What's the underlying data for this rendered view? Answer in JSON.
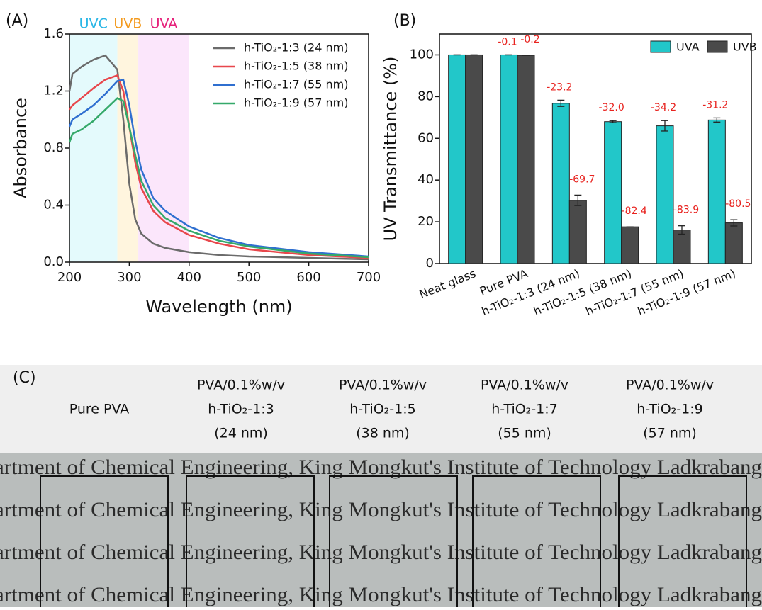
{
  "chart_data": [
    {
      "type": "line",
      "panel_label": "(A)",
      "x_label": "Wavelength (nm)",
      "y_label": "Absorbance",
      "xlim": [
        200,
        700
      ],
      "xticks": [
        200,
        300,
        400,
        500,
        600,
        700
      ],
      "ylim": [
        0,
        1.6
      ],
      "yticks": [
        {
          "value": 0,
          "label": "0.0"
        },
        0.4,
        0.8,
        1.2,
        1.6
      ],
      "regions": [
        {
          "label": "UVC",
          "start": 200,
          "end": 280,
          "color": "#e4fafc",
          "label_color": "#29b6e6"
        },
        {
          "label": "UVB",
          "start": 280,
          "end": 315,
          "color": "#fff5de",
          "label_color": "#f39a1e"
        },
        {
          "label": "UVA",
          "start": 315,
          "end": 400,
          "color": "#fbe6fb",
          "label_color": "#e6207a"
        }
      ],
      "x": [
        200,
        205,
        220,
        240,
        260,
        280,
        290,
        300,
        310,
        320,
        340,
        360,
        400,
        450,
        500,
        600,
        700
      ],
      "series": [
        {
          "name": "h-TiO₂-1:3 (24 nm)",
          "color": "#6b6b6b",
          "values": [
            1.2,
            1.32,
            1.37,
            1.42,
            1.45,
            1.35,
            1.0,
            0.55,
            0.3,
            0.2,
            0.13,
            0.1,
            0.07,
            0.05,
            0.04,
            0.03,
            0.02
          ]
        },
        {
          "name": "h-TiO₂-1:5 (38 nm)",
          "color": "#e8474c",
          "values": [
            1.07,
            1.1,
            1.15,
            1.22,
            1.28,
            1.31,
            1.2,
            0.95,
            0.7,
            0.52,
            0.36,
            0.28,
            0.19,
            0.13,
            0.09,
            0.05,
            0.03
          ]
        },
        {
          "name": "h-TiO₂-1:7 (55 nm)",
          "color": "#2f6fd0",
          "values": [
            0.95,
            1.0,
            1.04,
            1.1,
            1.18,
            1.27,
            1.28,
            1.1,
            0.85,
            0.65,
            0.45,
            0.36,
            0.25,
            0.17,
            0.12,
            0.07,
            0.04
          ]
        },
        {
          "name": "h-TiO₂-1:9 (57 nm)",
          "color": "#35a96a",
          "values": [
            0.84,
            0.9,
            0.93,
            0.99,
            1.07,
            1.15,
            1.13,
            0.95,
            0.75,
            0.57,
            0.4,
            0.31,
            0.22,
            0.15,
            0.11,
            0.06,
            0.035
          ]
        }
      ]
    },
    {
      "type": "bar",
      "panel_label": "(B)",
      "y_label": "UV Transmittance (%)",
      "ylim": [
        0,
        110
      ],
      "yticks": [
        0,
        20,
        40,
        60,
        80,
        100
      ],
      "legend": "top-right",
      "categories": [
        "Neat glass",
        "Pure PVA",
        "h-TiO₂-1:3 (24 nm)",
        "h-TiO₂-1:5 (38 nm)",
        "h-TiO₂-1:7 (55 nm)",
        "h-TiO₂-1:9 (57 nm)"
      ],
      "series": [
        {
          "name": "UVA",
          "color": "#22c7c9",
          "values": [
            100,
            100,
            76.8,
            68,
            66,
            68.8
          ],
          "errors": [
            0,
            0,
            1.5,
            0.5,
            2.5,
            1
          ],
          "changes": [
            null,
            -0.1,
            -23.2,
            -32.0,
            -34.2,
            -31.2
          ],
          "change_labels": [
            null,
            "-0.1",
            "-23.2",
            "-32.0",
            "-34.2",
            "-31.2"
          ]
        },
        {
          "name": "UVB",
          "color": "#4a4a4a",
          "values": [
            100,
            99.8,
            30.3,
            17.6,
            16.1,
            19.5
          ],
          "errors": [
            0,
            0,
            2.5,
            0,
            2,
            1.5
          ],
          "changes": [
            null,
            -0.2,
            -69.7,
            -82.4,
            -83.9,
            -80.5
          ],
          "change_labels": [
            null,
            "-0.2",
            "-69.7",
            "-82.4",
            "-83.9",
            "-80.5"
          ]
        }
      ]
    }
  ],
  "panel_c": {
    "label": "(C)",
    "columns": [
      [
        "Pure PVA"
      ],
      [
        "PVA/0.1%w/v",
        "h-TiO₂-1:3",
        "(24 nm)"
      ],
      [
        "PVA/0.1%w/v",
        "h-TiO₂-1:5",
        "(38 nm)"
      ],
      [
        "PVA/0.1%w/v",
        "h-TiO₂-1:7",
        "(55 nm)"
      ],
      [
        "PVA/0.1%w/v",
        "h-TiO₂-1:9",
        "(57 nm)"
      ]
    ],
    "photo_lines": [
      "artment of Chemical Engineering, King Mongkut's Institute of Technology Ladkrabang",
      "artment of Chemical Engineering, King Mongkut's Institute of Technology Ladkrabang",
      "artment of Chemical Engineering, King Mongkut's Institute of Technology Ladkrabang",
      "artment of Chemical Engineering, King Mongkut's Institute of Technology Ladkrabang"
    ]
  }
}
